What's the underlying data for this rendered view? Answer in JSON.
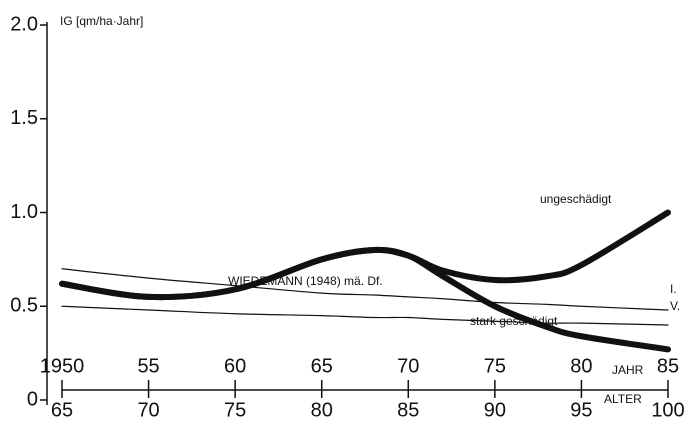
{
  "chart_data": {
    "type": "line",
    "ylabel": "IG [qm/ha·Jahr]",
    "xlabel": "JAHR",
    "x2label": "ALTER",
    "annotation": "WIEDEMANN (1948) mä. Df.",
    "x": [
      1950,
      1955,
      1960,
      1965,
      1968,
      1970,
      1972,
      1975,
      1978,
      1980,
      1985
    ],
    "xlim": [
      1950,
      1985
    ],
    "xticks": [
      1950,
      {
        "value": 1955,
        "label": "55"
      },
      {
        "value": 1960,
        "label": "60"
      },
      {
        "value": 1965,
        "label": "65"
      },
      {
        "value": 1970,
        "label": "70"
      },
      {
        "value": 1975,
        "label": "75"
      },
      {
        "value": 1980,
        "label": "80"
      },
      {
        "value": 1985,
        "label": "85"
      }
    ],
    "x2lim": [
      65,
      100
    ],
    "x2ticks": [
      65,
      70,
      75,
      80,
      85,
      90,
      95,
      100
    ],
    "ylim": [
      0,
      2
    ],
    "yticks": [
      0,
      0.5,
      {
        "value": 1,
        "label": "1.0"
      },
      1.5,
      {
        "value": 2,
        "label": "2.0"
      }
    ],
    "grid": false,
    "series": [
      {
        "name": "ungeschädigt",
        "color": "#111111",
        "width": 6,
        "values": [
          0.62,
          0.55,
          0.59,
          0.75,
          0.8,
          0.77,
          0.69,
          0.64,
          0.66,
          0.72,
          1.0
        ]
      },
      {
        "name": "stark geschädigt",
        "color": "#111111",
        "width": 6,
        "values": [
          0.62,
          0.55,
          0.59,
          0.75,
          0.8,
          0.77,
          0.66,
          0.5,
          0.39,
          0.34,
          0.27
        ]
      },
      {
        "name": "I.",
        "color": "#111111",
        "width": 1.2,
        "values": [
          0.7,
          0.65,
          0.61,
          0.57,
          0.56,
          0.55,
          0.54,
          0.52,
          0.51,
          0.5,
          0.48
        ]
      },
      {
        "name": "V.",
        "color": "#111111",
        "width": 1.2,
        "values": [
          0.5,
          0.48,
          0.46,
          0.45,
          0.44,
          0.44,
          0.43,
          0.42,
          0.41,
          0.41,
          0.4
        ]
      }
    ]
  }
}
